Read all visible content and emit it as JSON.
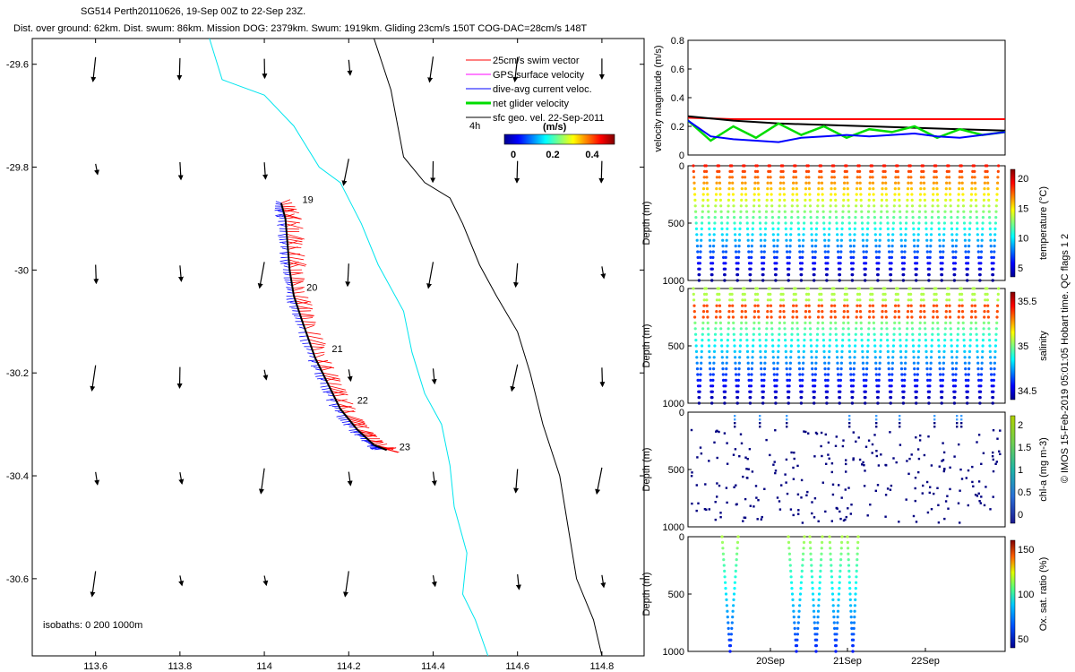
{
  "header": {
    "line1": "SG514 Perth20110626, 19-Sep 00Z to 22-Sep 23Z.",
    "line2": "Dist. over ground: 62km. Dist. swum: 86km. Mission DOG: 2379km. Swum: 1919km. Gliding 23cm/s 150T COG-DAC=28cm/s 148T"
  },
  "credit": "© IMOS 15-Feb-2019 05:01:05 Hobart time. QC flags 1  2",
  "chart_data": [
    {
      "type": "map",
      "xlim": [
        113.45,
        114.9
      ],
      "ylim": [
        -30.75,
        -29.55
      ],
      "xticks": [
        113.6,
        113.8,
        114,
        114.2,
        114.4,
        114.6,
        114.8
      ],
      "yticks": [
        -29.6,
        -29.8,
        -30,
        -30.2,
        -30.4,
        -30.6
      ],
      "xticklabels": [
        "113.6",
        "113.8",
        "114",
        "114.2",
        "114.4",
        "114.6",
        "114.8"
      ],
      "yticklabels": [
        "-29.6",
        "-29.8",
        "-30",
        "-30.2",
        "-30.4",
        "-30.6"
      ],
      "isobath_label": "isobaths: 0   200  1000m",
      "legend": {
        "entries": [
          {
            "label": "25cm/s swim vector",
            "color": "#ff0000"
          },
          {
            "label": "GPS surface velocity",
            "color": "#ff00ff"
          },
          {
            "label": "dive-avg current veloc.",
            "color": "#0000ff"
          },
          {
            "label": "net glider velocity",
            "color": "#00dd00"
          },
          {
            "label": "sfc geo. vel. 22-Sep-2011",
            "color": "#000000"
          }
        ],
        "interval_label": "4h",
        "colorbar_title": "(m/s)",
        "colorbar_ticks": [
          "0",
          "0.2",
          "0.4"
        ]
      },
      "track": [
        [
          114.04,
          -29.87
        ],
        [
          114.05,
          -29.9
        ],
        [
          114.055,
          -29.95
        ],
        [
          114.06,
          -30.0
        ],
        [
          114.07,
          -30.05
        ],
        [
          114.09,
          -30.1
        ],
        [
          114.12,
          -30.17
        ],
        [
          114.15,
          -30.22
        ],
        [
          114.18,
          -30.27
        ],
        [
          114.22,
          -30.31
        ],
        [
          114.26,
          -30.34
        ],
        [
          114.29,
          -30.35
        ]
      ],
      "day_labels": [
        {
          "label": "19",
          "lon": 114.09,
          "lat": -29.87
        },
        {
          "label": "20",
          "lon": 114.1,
          "lat": -30.04
        },
        {
          "label": "21",
          "lon": 114.16,
          "lat": -30.16
        },
        {
          "label": "22",
          "lon": 114.22,
          "lat": -30.26
        },
        {
          "label": "23",
          "lon": 114.32,
          "lat": -30.35
        }
      ],
      "coast_200m": [
        [
          113.87,
          -29.55
        ],
        [
          113.9,
          -29.63
        ],
        [
          114.0,
          -29.66
        ],
        [
          114.07,
          -29.72
        ],
        [
          114.13,
          -29.8
        ],
        [
          114.18,
          -29.83
        ],
        [
          114.23,
          -29.91
        ],
        [
          114.27,
          -29.99
        ],
        [
          114.33,
          -30.08
        ],
        [
          114.35,
          -30.16
        ],
        [
          114.38,
          -30.24
        ],
        [
          114.42,
          -30.3
        ],
        [
          114.44,
          -30.38
        ],
        [
          114.45,
          -30.46
        ],
        [
          114.48,
          -30.55
        ],
        [
          114.47,
          -30.63
        ],
        [
          114.5,
          -30.68
        ],
        [
          114.53,
          -30.75
        ]
      ],
      "coast_1000m": [
        [
          114.26,
          -29.55
        ],
        [
          114.3,
          -29.65
        ],
        [
          114.33,
          -29.78
        ],
        [
          114.38,
          -29.83
        ],
        [
          114.44,
          -29.86
        ],
        [
          114.47,
          -29.91
        ],
        [
          114.51,
          -29.99
        ],
        [
          114.55,
          -30.05
        ],
        [
          114.6,
          -30.12
        ],
        [
          114.63,
          -30.2
        ],
        [
          114.66,
          -30.3
        ],
        [
          114.7,
          -30.4
        ],
        [
          114.72,
          -30.5
        ],
        [
          114.74,
          -30.6
        ],
        [
          114.78,
          -30.68
        ],
        [
          114.8,
          -30.75
        ]
      ],
      "geo_vectors": {
        "lons": [
          113.6,
          113.8,
          114.0,
          114.2,
          114.4,
          114.6,
          114.8
        ],
        "lats": [
          -29.6,
          -29.8,
          -30.0,
          -30.2,
          -30.4,
          -30.6
        ],
        "note": "black arrows, ~southward"
      }
    },
    {
      "type": "line",
      "ylabel": "velocity magnitude (m/s)",
      "ylim": [
        0,
        0.8
      ],
      "yticks": [
        "0",
        "0.2",
        "0.4",
        "0.6",
        "0.8"
      ],
      "series": [
        {
          "color": "#ff0000",
          "values": [
            0.26,
            0.25,
            0.25,
            0.25,
            0.25,
            0.25,
            0.25,
            0.25
          ]
        },
        {
          "color": "#000000",
          "values": [
            0.27,
            0.24,
            0.22,
            0.21,
            0.2,
            0.19,
            0.18,
            0.17
          ]
        },
        {
          "color": "#00dd00",
          "values": [
            0.24,
            0.1,
            0.2,
            0.12,
            0.22,
            0.14,
            0.2,
            0.12,
            0.18,
            0.16,
            0.2,
            0.12,
            0.18,
            0.14,
            0.16
          ]
        },
        {
          "color": "#0000ff",
          "values": [
            0.24,
            0.13,
            0.11,
            0.1,
            0.09,
            0.12,
            0.13,
            0.14,
            0.13,
            0.14,
            0.15,
            0.13,
            0.12,
            0.14,
            0.16
          ]
        }
      ]
    },
    {
      "type": "scatter",
      "ylabel": "Depth (m)",
      "yticks": [
        "0",
        "500",
        "1000"
      ],
      "colorbar_label": "temperature (°C)",
      "colorbar_ticks": [
        "20",
        "15",
        "10",
        "5"
      ],
      "dives": 24,
      "max_depth": 1000
    },
    {
      "type": "scatter",
      "ylabel": "Depth (m)",
      "yticks": [
        "0",
        "500",
        "1000"
      ],
      "colorbar_label": "salinity",
      "colorbar_ticks": [
        "35.5",
        "35",
        "34.5"
      ],
      "dives": 24,
      "max_depth": 1000
    },
    {
      "type": "scatter",
      "ylabel": "Depth (m)",
      "yticks": [
        "0",
        "500",
        "1000"
      ],
      "colorbar_label": "chl-a (mg m-3)",
      "colorbar_ticks": [
        "2",
        "1.5",
        "1",
        "0.5",
        "0"
      ]
    },
    {
      "type": "scatter",
      "ylabel": "Depth (m)",
      "yticks": [
        "0",
        "500",
        "1000"
      ],
      "colorbar_label": "Ox. sat. ratio (%)",
      "colorbar_ticks": [
        "150",
        "100",
        "50"
      ],
      "xticklabels": [
        "20Sep",
        "21Sep",
        "22Sep"
      ]
    }
  ]
}
